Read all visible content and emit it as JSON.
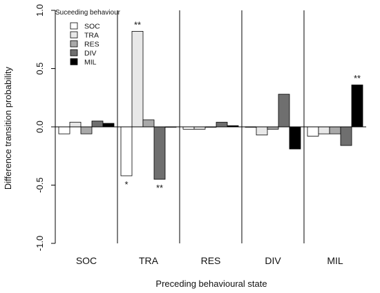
{
  "chart_data": {
    "type": "bar",
    "xlabel": "Preceding behavioural state",
    "ylabel": "Difference transition probability",
    "ylim": [
      -1.0,
      1.0
    ],
    "yticks": [
      "-1.0",
      "-0.5",
      "0.0",
      "0.5",
      "1.0"
    ],
    "grid": false,
    "legend_placement": "top-left",
    "legend_title": "Suceeding behaviour",
    "categories": [
      "SOC",
      "TRA",
      "RES",
      "DIV",
      "MIL"
    ],
    "series": [
      {
        "name": "SOC",
        "color": "#ffffff",
        "values": [
          -0.06,
          -0.42,
          -0.02,
          0.0,
          -0.08
        ]
      },
      {
        "name": "TRA",
        "color": "#e8e8e8",
        "values": [
          0.04,
          0.82,
          -0.02,
          -0.07,
          -0.06
        ]
      },
      {
        "name": "RES",
        "color": "#a9a9a9",
        "values": [
          -0.06,
          0.06,
          0.0,
          -0.02,
          -0.06
        ]
      },
      {
        "name": "DIV",
        "color": "#6f6f6f",
        "values": [
          0.05,
          -0.45,
          0.04,
          0.28,
          -0.16
        ]
      },
      {
        "name": "MIL",
        "color": "#000000",
        "values": [
          0.03,
          0.0,
          0.01,
          -0.19,
          0.36
        ]
      }
    ],
    "annotations": [
      {
        "category": "TRA",
        "series": "SOC",
        "text": "*"
      },
      {
        "category": "TRA",
        "series": "TRA",
        "text": "**"
      },
      {
        "category": "TRA",
        "series": "DIV",
        "text": "**"
      },
      {
        "category": "MIL",
        "series": "MIL",
        "text": "**"
      }
    ]
  }
}
